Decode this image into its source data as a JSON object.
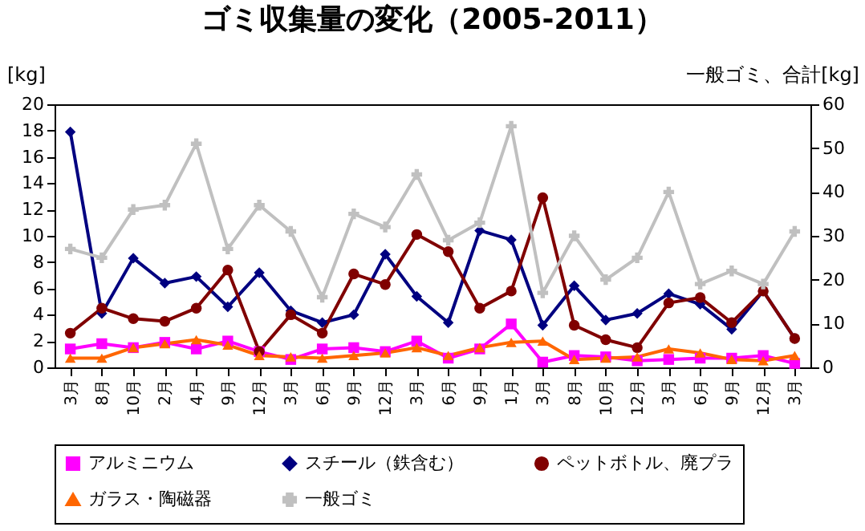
{
  "chart_data": {
    "type": "line",
    "title": "ゴミ収集量の変化（2005-2011）",
    "ylabel": "[kg]",
    "y2label": "一般ゴミ、合計[kg]",
    "categories": [
      "3月",
      "8月",
      "10月",
      "2月",
      "4月",
      "9月",
      "12月",
      "3月",
      "6月",
      "9月",
      "12月",
      "3月",
      "6月",
      "9月",
      "1月",
      "3月",
      "8月",
      "10月",
      "12月",
      "3月",
      "6月",
      "9月",
      "12月",
      "3月"
    ],
    "ylim": [
      0,
      20
    ],
    "yticks": [
      0,
      2,
      4,
      6,
      8,
      10,
      12,
      14,
      16,
      18,
      20
    ],
    "y2lim": [
      0,
      60
    ],
    "y2ticks": [
      0,
      10,
      20,
      30,
      40,
      50,
      60
    ],
    "grid": false,
    "legend": "bottom",
    "series": [
      {
        "name": "アルミニウム",
        "color": "#ff00ff",
        "marker": "square",
        "values": [
          1.4,
          1.8,
          1.5,
          1.9,
          1.4,
          2.0,
          1.2,
          0.6,
          1.4,
          1.5,
          1.2,
          2.0,
          0.7,
          1.4,
          3.3,
          0.4,
          0.9,
          0.8,
          0.5,
          0.6,
          0.7,
          0.7,
          0.9,
          0.3
        ]
      },
      {
        "name": "スチール（鉄含む）",
        "color": "#000080",
        "marker": "diamond",
        "values": [
          17.9,
          4.1,
          8.3,
          6.4,
          6.9,
          4.6,
          7.2,
          4.3,
          3.4,
          4.0,
          8.6,
          5.4,
          3.4,
          10.4,
          9.7,
          3.2,
          6.2,
          3.6,
          4.1,
          5.6,
          4.8,
          2.9,
          5.8,
          2.2
        ]
      },
      {
        "name": "ペットボトル、廃プラ",
        "color": "#800000",
        "marker": "circle",
        "values": [
          2.6,
          4.5,
          3.7,
          3.5,
          4.5,
          7.4,
          1.2,
          4.0,
          2.6,
          7.1,
          6.3,
          10.1,
          8.8,
          4.5,
          5.8,
          12.9,
          3.2,
          2.1,
          1.5,
          4.9,
          5.3,
          3.4,
          5.8,
          2.2
        ]
      },
      {
        "name": "ガラス・陶磁器",
        "color": "#ff6600",
        "marker": "triangle",
        "values": [
          0.7,
          0.7,
          1.5,
          1.8,
          2.1,
          1.7,
          0.9,
          0.8,
          0.7,
          0.9,
          1.1,
          1.5,
          0.9,
          1.5,
          1.9,
          2.0,
          0.6,
          0.7,
          0.8,
          1.4,
          1.1,
          0.6,
          0.5,
          0.9
        ]
      },
      {
        "name": "一般ゴミ",
        "color": "#c0c0c0",
        "marker": "cross",
        "axis": "y2",
        "values": [
          27,
          25,
          36,
          37,
          51,
          27,
          37,
          31,
          16,
          35,
          32,
          44,
          29,
          33,
          55,
          17,
          30,
          20,
          25,
          40,
          19,
          22,
          19,
          31
        ]
      }
    ]
  }
}
